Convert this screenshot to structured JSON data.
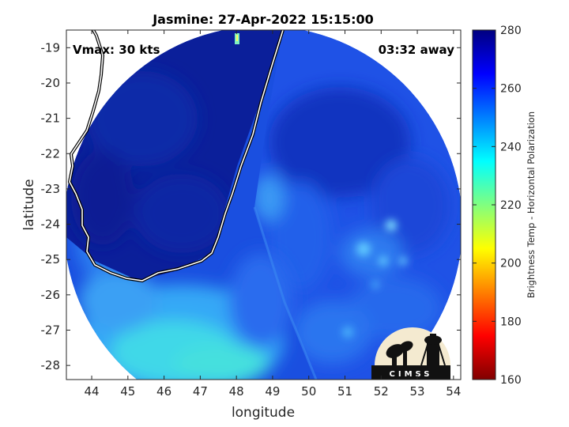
{
  "chart_data": {
    "type": "heatmap",
    "title": "Jasmine: 27-Apr-2022 15:15:00",
    "annotations": {
      "vmax": "Vmax: 30 kts",
      "away": "03:32 away"
    },
    "xlabel": "longitude",
    "ylabel": "latitude",
    "xlim": [
      43.3,
      54.2
    ],
    "ylim": [
      -28.4,
      -18.5
    ],
    "x_ticks": [
      44,
      45,
      46,
      47,
      48,
      49,
      50,
      51,
      52,
      53,
      54
    ],
    "y_ticks": [
      -19,
      -20,
      -21,
      -22,
      -23,
      -24,
      -25,
      -26,
      -27,
      -28
    ],
    "colorbar": {
      "label": "Brightness Temp - Horizontal Polarization",
      "range": [
        160,
        280
      ],
      "ticks": [
        280,
        260,
        240,
        220,
        200,
        180,
        160
      ],
      "colormap": "jet"
    },
    "logo": {
      "text": "CIMSS"
    }
  }
}
